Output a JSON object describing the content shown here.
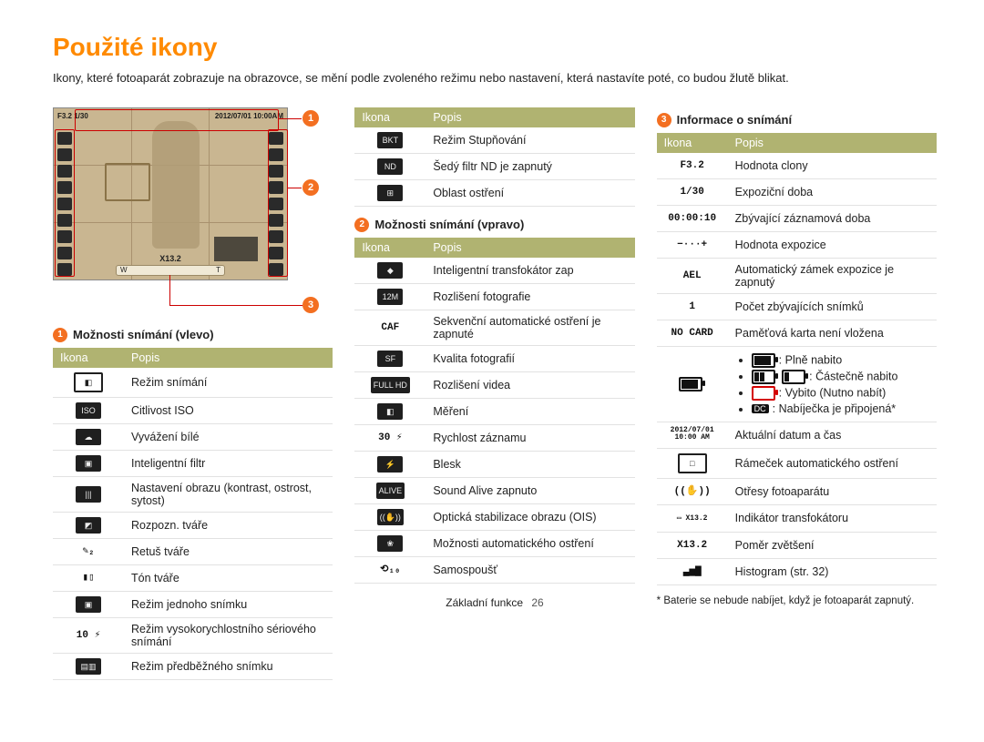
{
  "title": "Použité ikony",
  "intro": "Ikony, které fotoaparát zobrazuje na obrazovce, se mění podle zvoleného režimu nebo nastavení, která nastavíte poté, co budou žlutě blikat.",
  "screenshot": {
    "top_left": "F3.2 1/30",
    "top_right": "2012/07/01  10:00AM",
    "zoom_label": "X13.2",
    "zoom_bar_left": "W",
    "zoom_bar_right": "T"
  },
  "callouts": {
    "c1": "1",
    "c2": "2",
    "c3": "3"
  },
  "sec1_num": "1",
  "sec1_title": "Možnosti snímání (vlevo)",
  "sec2_num": "2",
  "sec2_title": "Možnosti snímání (vpravo)",
  "sec3_num": "3",
  "sec3_title": "Informace o snímání",
  "headers": {
    "icon": "Ikona",
    "desc": "Popis"
  },
  "table_left": [
    {
      "g": "◧",
      "gc": "glyph outline",
      "d": "Režim snímání"
    },
    {
      "g": "ISO",
      "gc": "glyph",
      "d": "Citlivost ISO"
    },
    {
      "g": "☁",
      "gc": "glyph",
      "d": "Vyvážení bílé"
    },
    {
      "g": "▣",
      "gc": "glyph",
      "d": "Inteligentní filtr"
    },
    {
      "g": "|||",
      "gc": "glyph",
      "d": "Nastavení obrazu (kontrast, ostrost, sytost)"
    },
    {
      "g": "◩",
      "gc": "glyph",
      "d": "Rozpozn. tváře"
    },
    {
      "g": "✎₂",
      "gc": "glyph txt",
      "d": "Retuš tváře"
    },
    {
      "g": "▮▯",
      "gc": "glyph txt",
      "d": "Tón tváře"
    },
    {
      "g": "▣",
      "gc": "glyph",
      "d": "Režim jednoho snímku"
    },
    {
      "g": "10 ⚡",
      "gc": "glyph txt",
      "d": "Režim vysokorychlostního sériového snímání"
    },
    {
      "g": "▤▥",
      "gc": "glyph",
      "d": "Režim předběžného snímku"
    }
  ],
  "table_mid_a": [
    {
      "g": "BKT",
      "gc": "glyph",
      "d": "Režim Stupňování"
    },
    {
      "g": "ND",
      "gc": "glyph",
      "d": "Šedý filtr ND je zapnutý"
    },
    {
      "g": "⊞",
      "gc": "glyph",
      "d": "Oblast ostření"
    }
  ],
  "table_mid_b": [
    {
      "g": "◆",
      "gc": "glyph",
      "d": "Inteligentní transfokátor zap"
    },
    {
      "g": "12M",
      "gc": "glyph",
      "d": "Rozlišení fotografie"
    },
    {
      "g": "CAF",
      "gc": "glyph txt",
      "d": "Sekvenční automatické ostření je zapnuté"
    },
    {
      "g": "SF",
      "gc": "glyph",
      "d": "Kvalita fotografií"
    },
    {
      "g": "FULL HD",
      "gc": "glyph",
      "d": "Rozlišení videa"
    },
    {
      "g": "◧",
      "gc": "glyph",
      "d": "Měření"
    },
    {
      "g": "30 ⚡",
      "gc": "glyph txt",
      "d": "Rychlost záznamu"
    },
    {
      "g": "⚡",
      "gc": "glyph",
      "d": "Blesk"
    },
    {
      "g": "ALIVE",
      "gc": "glyph",
      "d": "Sound Alive zapnuto"
    },
    {
      "g": "((✋))",
      "gc": "glyph",
      "d": "Optická stabilizace obrazu (OIS)"
    },
    {
      "g": "❀",
      "gc": "glyph",
      "d": "Možnosti automatického ostření"
    },
    {
      "g": "⟲₁₀",
      "gc": "glyph txt",
      "d": "Samospoušť"
    }
  ],
  "table_right": [
    {
      "g": "F3.2",
      "gc": "glyph txt",
      "d": "Hodnota clony"
    },
    {
      "g": "1/30",
      "gc": "glyph txt",
      "d": "Expoziční doba"
    },
    {
      "g": "00:00:10",
      "gc": "glyph txt",
      "d": "Zbývající záznamová doba"
    },
    {
      "g": "−···+",
      "gc": "glyph txt",
      "d": "Hodnota expozice"
    },
    {
      "g": "AEL",
      "gc": "glyph txt",
      "d": "Automatický zámek expozice je zapnutý"
    },
    {
      "g": "1",
      "gc": "glyph txt",
      "d": "Počet zbývajících snímků"
    },
    {
      "g": "NO CARD",
      "gc": "glyph txt",
      "d": "Paměťová karta není vložena"
    }
  ],
  "battery": {
    "head_icon": "▮▮▮",
    "items": {
      "full": "Plně nabito",
      "partial": "Částečně nabito",
      "empty": "Vybito (Nutno nabít)",
      "dc": "Nabíječka je připojená*"
    }
  },
  "table_right_2": [
    {
      "g": "2012/07/01 10:00 AM",
      "gc": "glyph txt",
      "style": "font-size:8px;line-height:1.0;",
      "d": "Aktuální datum a čas"
    },
    {
      "g": "□",
      "gc": "glyph outline",
      "d": "Rámeček automatického ostření"
    },
    {
      "g": "((✋))",
      "gc": "glyph txt",
      "d": "Otřesy fotoaparátu"
    },
    {
      "g": "▭ X13.2",
      "gc": "glyph txt",
      "style": "font-size:8px;",
      "d": "Indikátor transfokátoru"
    },
    {
      "g": "X13.2",
      "gc": "glyph txt",
      "d": "Poměr zvětšení"
    },
    {
      "g": "▃▅▇",
      "gc": "glyph txt",
      "d": "Histogram (str. 32)"
    }
  ],
  "footnote": "* Baterie se nebude nabíjet, když je fotoaparát zapnutý.",
  "footer_label": "Základní funkce",
  "footer_page": "26",
  "colors": {
    "accent": "#ff8a00",
    "callout_circle": "#f36f21",
    "callout_line": "#cc0000",
    "table_header_bg": "#b0b371",
    "table_header_fg": "#ffffff",
    "screenshot_bg": "#c9b691"
  }
}
